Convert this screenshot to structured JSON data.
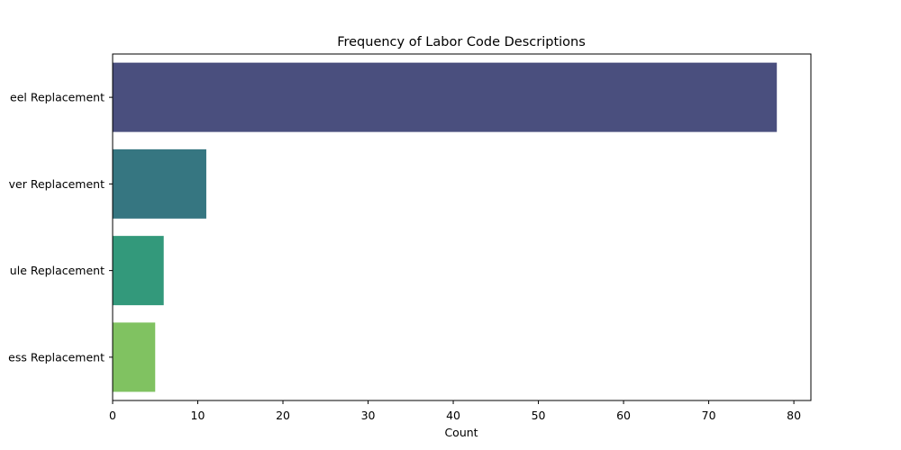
{
  "chart_data": {
    "type": "bar",
    "orientation": "horizontal",
    "title": "Frequency of Labor Code Descriptions",
    "xlabel": "Count",
    "ylabel": "",
    "categories": [
      "Wheel Replacement",
      "Driver Replacement",
      "Module Replacement",
      "Harness Replacement"
    ],
    "category_labels_visible": [
      "eel Replacement",
      "ver Replacement",
      "ule Replacement",
      "ess Replacement"
    ],
    "values": [
      78,
      11,
      6,
      5
    ],
    "colors": [
      "#4a4f7e",
      "#367681",
      "#33997b",
      "#80c261"
    ],
    "xlim": [
      0,
      82
    ],
    "xticks": [
      0,
      10,
      20,
      30,
      40,
      50,
      60,
      70,
      80
    ],
    "grid": false,
    "legend": "none"
  }
}
